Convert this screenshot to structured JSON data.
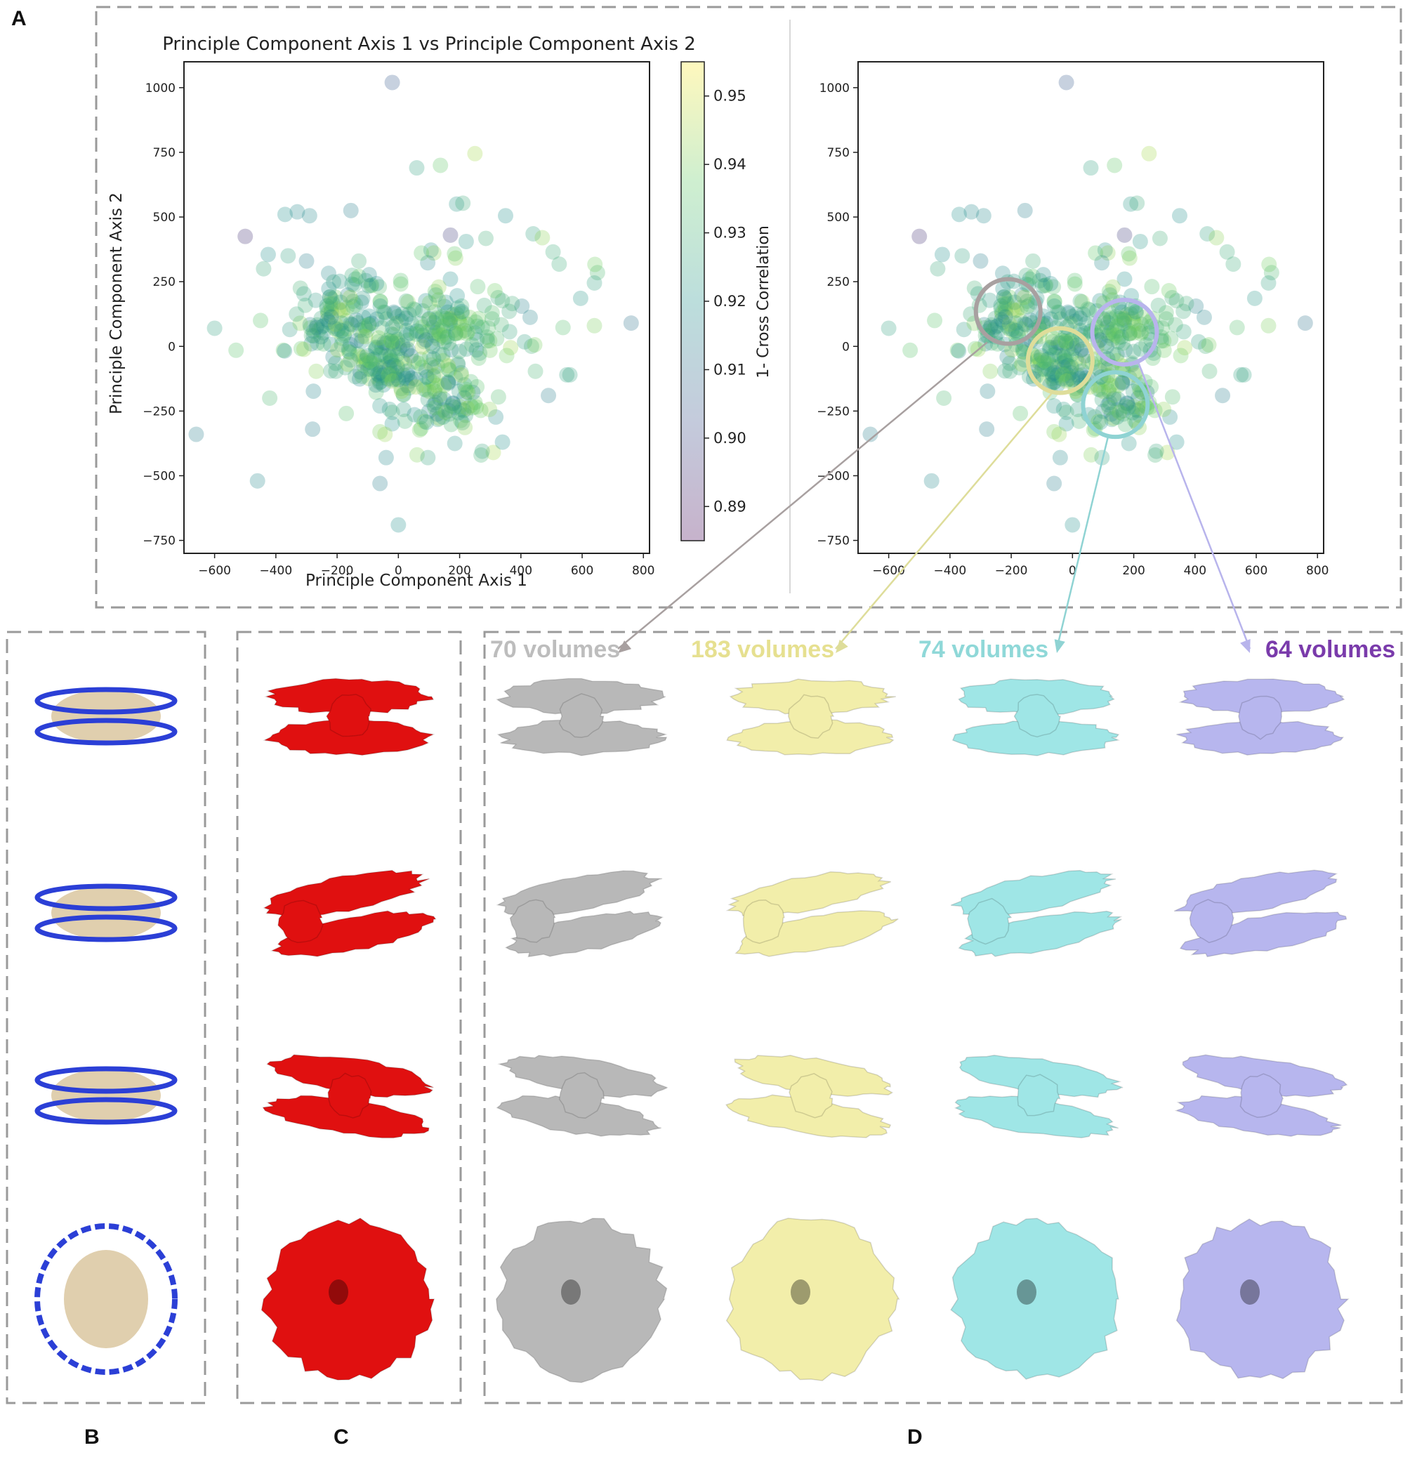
{
  "panel_labels": {
    "a": "A",
    "b": "B",
    "c": "C",
    "d": "D"
  },
  "volume_groups": [
    {
      "label": "70 volumes",
      "color": "#bdbdbd",
      "circle_color": "#a8a0a0",
      "center_x": -210,
      "center_y": 135
    },
    {
      "label": "183 volumes",
      "color": "#e6e090",
      "circle_color": "#dedd9a",
      "center_x": -40,
      "center_y": -55
    },
    {
      "label": "74 volumes",
      "color": "#8fd8d8",
      "circle_color": "#8fd3d3",
      "center_x": 140,
      "center_y": -225
    },
    {
      "label": "64 volumes",
      "color": "#7a3bab",
      "circle_color": "#b8b4ec",
      "center_x": 170,
      "center_y": 55
    }
  ],
  "colors": {
    "reference_map": "#e01010",
    "gray_map": "#b8b8b8",
    "yellow_map": "#f2eeaa",
    "cyan_map": "#9fe6e6",
    "lavender_map": "#b7b6ee",
    "dna": "#2b3fd6",
    "protein": "#d8c39a",
    "border": "#9a9a9a"
  },
  "chart_data": [
    {
      "type": "scatter",
      "title": "Principle Component Axis 1 vs Principle Component Axis 2",
      "xlabel": "Principle Component Axis 1",
      "ylabel": "Principle Component Axis 2",
      "xlim": [
        -700,
        820
      ],
      "ylim": [
        -800,
        1100
      ],
      "xticks": [
        -600,
        -400,
        -200,
        0,
        200,
        400,
        600,
        800
      ],
      "xtick_labels": [
        "−600",
        "−400",
        "−200",
        "0",
        "200",
        "400",
        "600",
        "800"
      ],
      "yticks": [
        -750,
        -500,
        -250,
        0,
        250,
        500,
        750,
        1000
      ],
      "ytick_labels": [
        "−750",
        "−500",
        "−250",
        "0",
        "250",
        "500",
        "750",
        "1000"
      ],
      "colorbar": {
        "label": "1- Cross Correlation",
        "min": 0.885,
        "max": 0.955,
        "ticks": [
          0.89,
          0.9,
          0.91,
          0.92,
          0.93,
          0.94,
          0.95
        ],
        "tick_labels": [
          "0.89",
          "0.90",
          "0.91",
          "0.92",
          "0.93",
          "0.94",
          "0.95"
        ],
        "colormap": "viridis"
      },
      "points": [
        {
          "x": -20,
          "y": 1020,
          "c": 0.905
        },
        {
          "x": 250,
          "y": 745,
          "c": 0.945
        },
        {
          "x": 60,
          "y": 690,
          "c": 0.925
        },
        {
          "x": -500,
          "y": 425,
          "c": 0.895
        },
        {
          "x": 170,
          "y": 430,
          "c": 0.897
        },
        {
          "x": -330,
          "y": 520,
          "c": 0.918
        },
        {
          "x": -370,
          "y": 510,
          "c": 0.92
        },
        {
          "x": -290,
          "y": 505,
          "c": 0.918
        },
        {
          "x": -155,
          "y": 525,
          "c": 0.915
        },
        {
          "x": 190,
          "y": 550,
          "c": 0.922
        },
        {
          "x": 350,
          "y": 505,
          "c": 0.92
        },
        {
          "x": 440,
          "y": 435,
          "c": 0.925
        },
        {
          "x": 470,
          "y": 420,
          "c": 0.942
        },
        {
          "x": 505,
          "y": 365,
          "c": 0.928
        },
        {
          "x": 525,
          "y": 318,
          "c": 0.928
        },
        {
          "x": -425,
          "y": 355,
          "c": 0.92
        },
        {
          "x": -300,
          "y": 330,
          "c": 0.915
        },
        {
          "x": -320,
          "y": 225,
          "c": 0.93
        },
        {
          "x": 650,
          "y": 285,
          "c": 0.932
        },
        {
          "x": 640,
          "y": 245,
          "c": 0.925
        },
        {
          "x": 640,
          "y": 80,
          "c": 0.94
        },
        {
          "x": 760,
          "y": 90,
          "c": 0.912
        },
        {
          "x": -600,
          "y": 70,
          "c": 0.925
        },
        {
          "x": -450,
          "y": 100,
          "c": 0.935
        },
        {
          "x": -530,
          "y": -15,
          "c": 0.935
        },
        {
          "x": -660,
          "y": -340,
          "c": 0.915
        },
        {
          "x": -460,
          "y": -520,
          "c": 0.918
        },
        {
          "x": -60,
          "y": -530,
          "c": 0.915
        },
        {
          "x": -40,
          "y": -430,
          "c": 0.918
        },
        {
          "x": 0,
          "y": -690,
          "c": 0.92
        },
        {
          "x": 490,
          "y": -190,
          "c": 0.915
        },
        {
          "x": 550,
          "y": -110,
          "c": 0.925
        },
        {
          "x": 560,
          "y": -110,
          "c": 0.925
        },
        {
          "x": 310,
          "y": -410,
          "c": 0.945
        },
        {
          "x": 270,
          "y": -420,
          "c": 0.93
        },
        {
          "x": 340,
          "y": -370,
          "c": 0.92
        },
        {
          "x": -60,
          "y": -330,
          "c": 0.94
        },
        {
          "x": -280,
          "y": -320,
          "c": 0.915
        },
        {
          "x": 170,
          "y": 260,
          "c": 0.92
        },
        {
          "x": -360,
          "y": 350,
          "c": 0.925
        },
        {
          "x": -440,
          "y": 300,
          "c": 0.927
        },
        {
          "x": -420,
          "y": -200,
          "c": 0.932
        }
      ],
      "cluster_densities": [
        {
          "cx": -200,
          "cy": 110,
          "sx": 75,
          "sy": 85,
          "n": 95
        },
        {
          "cx": -40,
          "cy": -50,
          "sx": 70,
          "sy": 80,
          "n": 120
        },
        {
          "cx": 150,
          "cy": 50,
          "sx": 80,
          "sy": 85,
          "n": 90
        },
        {
          "cx": 140,
          "cy": -220,
          "sx": 75,
          "sy": 70,
          "n": 70
        },
        {
          "cx": 80,
          "cy": 100,
          "sx": 220,
          "sy": 190,
          "n": 90
        }
      ]
    },
    {
      "type": "scatter",
      "title": "",
      "xlabel": "",
      "ylabel": "",
      "xlim": [
        -700,
        820
      ],
      "ylim": [
        -800,
        1100
      ],
      "same_points_as": 0,
      "xticks": [
        -600,
        -400,
        -200,
        0,
        200,
        400,
        600,
        800
      ],
      "xtick_labels": [
        "−600",
        "−400",
        "−200",
        "0",
        "200",
        "400",
        "600",
        "800"
      ],
      "yticks": [
        -750,
        -500,
        -250,
        0,
        250,
        500,
        750,
        1000
      ],
      "ytick_labels": [
        "−750",
        "−500",
        "−250",
        "0",
        "250",
        "500",
        "750",
        "1000"
      ]
    }
  ]
}
